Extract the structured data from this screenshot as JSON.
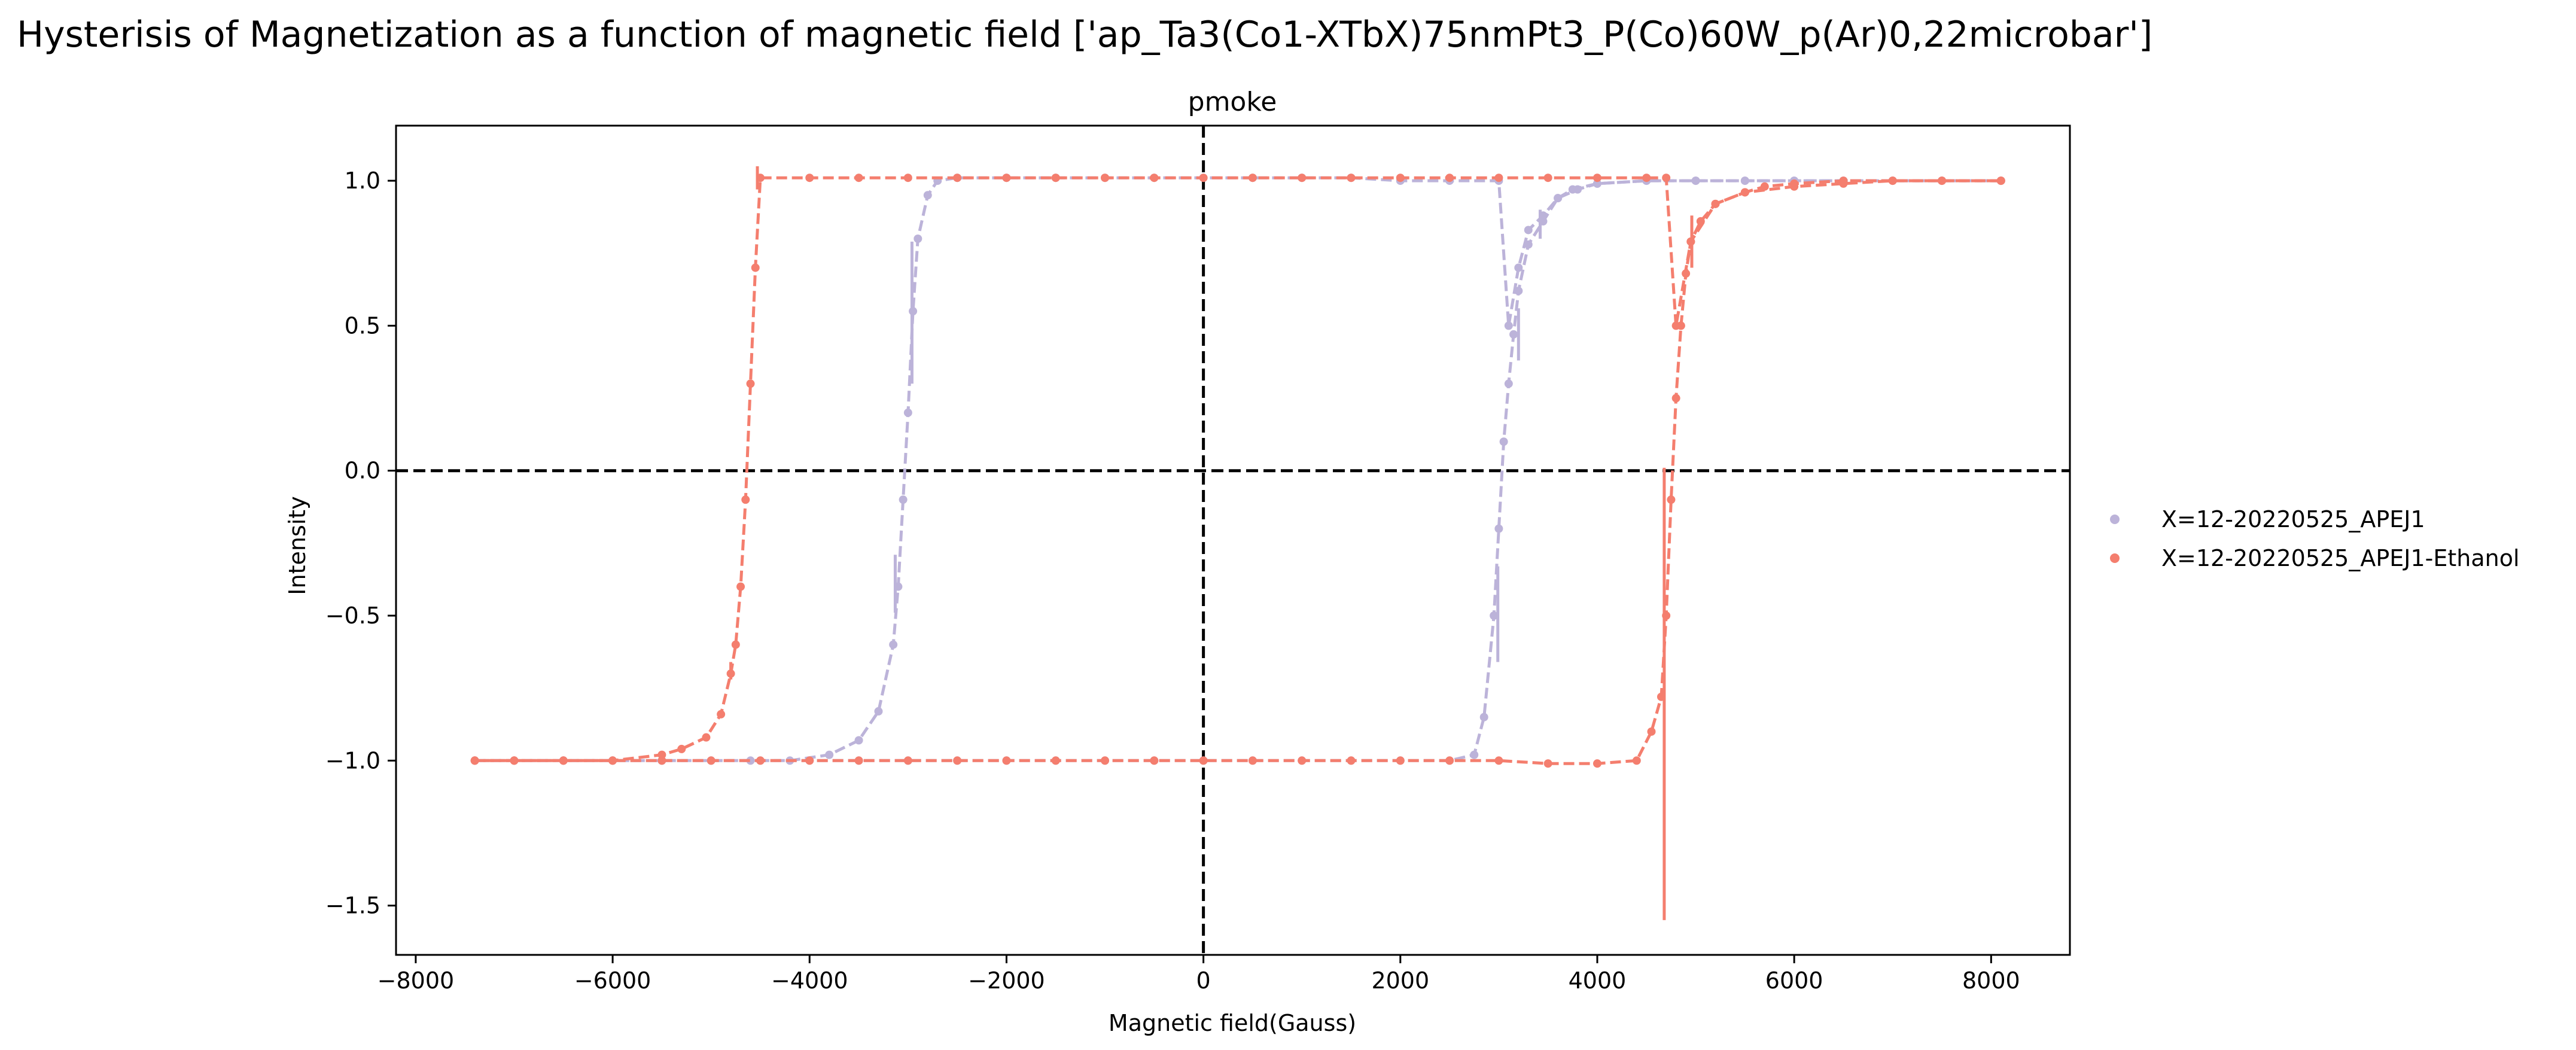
{
  "chart_data": {
    "type": "line",
    "title": "Hysterisis of Magnetization as a function of magnetic field ['ap_Ta3(Co1-XTbX)75nmPt3_P(Co)60W_p(Ar)0,22microbar']",
    "subtitle": "pmoke",
    "xlabel": "Magnetic field(Gauss)",
    "ylabel": "Intensity",
    "xlim": [
      -8200,
      8800
    ],
    "ylim": [
      -1.67,
      1.19
    ],
    "xticks": [
      -8000,
      -6000,
      -4000,
      -2000,
      0,
      2000,
      4000,
      6000,
      8000
    ],
    "xtick_labels": [
      "−8000",
      "−6000",
      "−4000",
      "−2000",
      "0",
      "2000",
      "4000",
      "6000",
      "8000"
    ],
    "yticks": [
      -1.5,
      -1.0,
      -0.5,
      0.0,
      0.5,
      1.0
    ],
    "ytick_labels": [
      "−1.5",
      "−1.0",
      "−0.5",
      "0.0",
      "0.5",
      "1.0"
    ],
    "grid": false,
    "reference_lines": {
      "x": 0,
      "y": 0,
      "style": "dashed",
      "color": "#000000"
    },
    "legend_position": "outside-right",
    "series": [
      {
        "name": "X=12-20220525_APEJ1",
        "color": "#bcb3d9",
        "descending_branch": {
          "x": [
            8100,
            7500,
            7000,
            6500,
            6000,
            5500,
            5000,
            4500,
            4000,
            3750,
            3600,
            3450,
            3300,
            3200,
            3100,
            3000,
            2500,
            2000,
            1500,
            1000,
            500,
            0,
            -500,
            -1000,
            -1500,
            -2000,
            -2500,
            -2700,
            -2800,
            -2900,
            -2950,
            -3000,
            -3050,
            -3100,
            -3150,
            -3300,
            -3500,
            -3800,
            -4200,
            -4600,
            -5000,
            -5500,
            -6000,
            -6500,
            -7000,
            -7400
          ],
          "y": [
            1.0,
            1.0,
            1.0,
            1.0,
            1.0,
            1.0,
            1.0,
            1.0,
            0.99,
            0.97,
            0.94,
            0.88,
            0.83,
            0.7,
            0.5,
            1.0,
            1.0,
            1.0,
            1.01,
            1.01,
            1.01,
            1.01,
            1.01,
            1.01,
            1.01,
            1.01,
            1.01,
            1.0,
            0.95,
            0.8,
            0.55,
            0.2,
            -0.1,
            -0.4,
            -0.6,
            -0.83,
            -0.93,
            -0.98,
            -1.0,
            -1.0,
            -1.0,
            -1.0,
            -1.0,
            -1.0,
            -1.0,
            -1.0
          ]
        },
        "ascending_branch": {
          "x": [
            -7400,
            -7000,
            -6500,
            -6000,
            -5500,
            -5000,
            -4500,
            -4000,
            -3500,
            -3000,
            -2500,
            -2000,
            -1500,
            -1000,
            -500,
            0,
            500,
            1000,
            1500,
            2000,
            2500,
            2750,
            2850,
            2950,
            3000,
            3050,
            3100,
            3150,
            3200,
            3300,
            3450,
            3600,
            3800,
            4000,
            4500,
            5000,
            5500,
            6000,
            6500,
            7000,
            7500,
            8100
          ],
          "y": [
            -1.0,
            -1.0,
            -1.0,
            -1.0,
            -1.0,
            -1.0,
            -1.0,
            -1.0,
            -1.0,
            -1.0,
            -1.0,
            -1.0,
            -1.0,
            -1.0,
            -1.0,
            -1.0,
            -1.0,
            -1.0,
            -1.0,
            -1.0,
            -1.0,
            -0.98,
            -0.85,
            -0.5,
            -0.2,
            0.1,
            0.3,
            0.47,
            0.62,
            0.78,
            0.86,
            0.94,
            0.97,
            0.99,
            1.0,
            1.0,
            1.0,
            1.0,
            1.0,
            1.0,
            1.0,
            1.0
          ]
        },
        "error_bars": [
          {
            "x": -2960,
            "y": 0.55,
            "low": 0.3,
            "high": 0.79
          },
          {
            "x": -3130,
            "y": -0.39,
            "low": -0.49,
            "high": -0.29
          },
          {
            "x": 2990,
            "y": -0.5,
            "low": -0.66,
            "high": -0.33
          },
          {
            "x": 3200,
            "y": 0.47,
            "low": 0.38,
            "high": 0.56
          },
          {
            "x": 3420,
            "y": 0.84,
            "low": 0.8,
            "high": 0.9
          }
        ]
      },
      {
        "name": "X=12-20220525_APEJ1-Ethanol",
        "color": "#f47e6e",
        "descending_branch": {
          "x": [
            8100,
            7500,
            7000,
            6500,
            6000,
            5700,
            5500,
            5200,
            4950,
            4800,
            4700,
            4500,
            4000,
            3500,
            3000,
            2500,
            2000,
            1500,
            1000,
            500,
            0,
            -500,
            -1000,
            -1500,
            -2000,
            -2500,
            -3000,
            -3500,
            -4000,
            -4500,
            -4550,
            -4600,
            -4650,
            -4700,
            -4750,
            -4800,
            -4900,
            -5050,
            -5300,
            -5500,
            -6000,
            -6500,
            -7000,
            -7400
          ],
          "y": [
            1.0,
            1.0,
            1.0,
            1.0,
            0.99,
            0.98,
            0.96,
            0.92,
            0.79,
            0.5,
            1.01,
            1.01,
            1.01,
            1.01,
            1.01,
            1.01,
            1.01,
            1.01,
            1.01,
            1.01,
            1.01,
            1.01,
            1.01,
            1.01,
            1.01,
            1.01,
            1.01,
            1.01,
            1.01,
            1.01,
            0.7,
            0.3,
            -0.1,
            -0.4,
            -0.6,
            -0.7,
            -0.84,
            -0.92,
            -0.96,
            -0.98,
            -1.0,
            -1.0,
            -1.0,
            -1.0
          ]
        },
        "ascending_branch": {
          "x": [
            -7400,
            -7000,
            -6500,
            -6000,
            -5500,
            -5000,
            -4500,
            -4000,
            -3500,
            -3000,
            -2500,
            -2000,
            -1500,
            -1000,
            -500,
            0,
            500,
            1000,
            1500,
            2000,
            2500,
            3000,
            3500,
            4000,
            4400,
            4550,
            4650,
            4700,
            4750,
            4800,
            4850,
            4900,
            4950,
            5050,
            5200,
            5500,
            6000,
            6500,
            7000,
            7500,
            8100
          ],
          "y": [
            -1.0,
            -1.0,
            -1.0,
            -1.0,
            -1.0,
            -1.0,
            -1.0,
            -1.0,
            -1.0,
            -1.0,
            -1.0,
            -1.0,
            -1.0,
            -1.0,
            -1.0,
            -1.0,
            -1.0,
            -1.0,
            -1.0,
            -1.0,
            -1.0,
            -1.0,
            -1.01,
            -1.01,
            -1.0,
            -0.9,
            -0.78,
            -0.5,
            -0.1,
            0.25,
            0.5,
            0.68,
            0.79,
            0.86,
            0.92,
            0.96,
            0.98,
            0.99,
            1.0,
            1.0,
            1.0
          ]
        },
        "error_bars": [
          {
            "x": -4530,
            "y": 1.01,
            "low": 0.97,
            "high": 1.05
          },
          {
            "x": -4800,
            "y": -0.69,
            "low": -0.72,
            "high": -0.66
          },
          {
            "x": 4680,
            "y": -0.77,
            "low": -1.55,
            "high": 0.01
          },
          {
            "x": 4960,
            "y": 0.79,
            "low": 0.7,
            "high": 0.88
          }
        ]
      }
    ]
  }
}
